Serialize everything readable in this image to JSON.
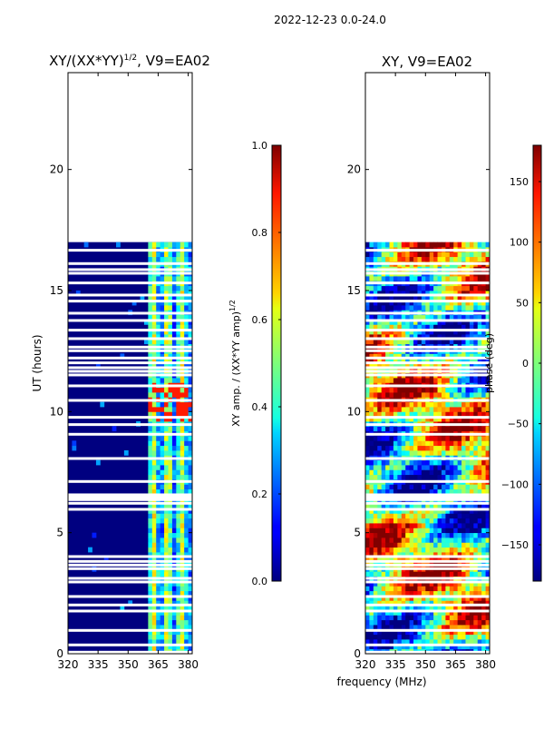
{
  "figure": {
    "suptitle": "2022-12-23 0.0-24.0",
    "xlabel": "frequency (MHz)"
  },
  "colors": {
    "jet_dark_blue": "#00007f",
    "jet_dark_red": "#7f0000",
    "frame": "#000000",
    "background": "#ffffff"
  },
  "chart_data": [
    {
      "type": "heatmap",
      "name": "amplitude-panel",
      "title_main": "XY/(XX*YY)",
      "title_exp": "1/2",
      "title_rest": ", V9=EA02",
      "ylabel": "UT (hours)",
      "xlabel": "",
      "xlim": [
        320,
        382
      ],
      "ylim": [
        0,
        24
      ],
      "x_ticks": [
        320,
        335,
        350,
        365,
        380
      ],
      "y_ticks": [
        0,
        5,
        10,
        15,
        20
      ],
      "data_ut_range": [
        0,
        17.0
      ],
      "colorbar": {
        "label_main": "XY amp. / (XX*YY amp)",
        "label_exp": "1/2",
        "range": [
          0.0,
          1.0
        ],
        "ticks": [
          "0.0",
          "0.2",
          "0.4",
          "0.6",
          "0.8",
          "1.0"
        ],
        "tick_values": [
          0.0,
          0.2,
          0.4,
          0.6,
          0.8,
          1.0
        ]
      },
      "description_values": {
        "background_level": 0.0,
        "rfi_band_mhz": [
          360,
          382
        ],
        "rfi_band_level_range": [
          0.1,
          0.7
        ],
        "strong_rfi_ut": [
          9.5,
          11.0
        ],
        "strong_rfi_level": 0.85
      },
      "flagged_ut": [
        0.05,
        0.35,
        0.95,
        1.75,
        2.0,
        2.35,
        2.95,
        3.1,
        3.5,
        3.65,
        3.8,
        4.0,
        5.95,
        6.2,
        6.35,
        6.45,
        6.55,
        7.1,
        8.05,
        9.05,
        9.45,
        9.75,
        10.45,
        11.05,
        11.5,
        11.65,
        11.8,
        12.0,
        12.2,
        12.5,
        12.65,
        13.0,
        13.35,
        13.75,
        14.05,
        14.55,
        14.8,
        15.3,
        15.7,
        15.85,
        16.1,
        16.65
      ]
    },
    {
      "type": "heatmap",
      "name": "phase-panel",
      "title_main": "XY, V9=EA02",
      "ylabel": "",
      "xlabel": "",
      "xlim": [
        320,
        382
      ],
      "ylim": [
        0,
        24
      ],
      "x_ticks": [
        320,
        335,
        350,
        365,
        380
      ],
      "y_ticks": [
        0,
        5,
        10,
        15,
        20
      ],
      "data_ut_range": [
        0,
        17.0
      ],
      "colorbar": {
        "label": "phase (deg)",
        "range": [
          -180,
          180
        ],
        "ticks": [
          "−150",
          "−100",
          "−50",
          "0",
          "50",
          "100",
          "150"
        ],
        "tick_values": [
          -150,
          -100,
          -50,
          0,
          50,
          100,
          150
        ]
      },
      "flagged_ut": [
        0.05,
        0.35,
        0.95,
        1.75,
        2.0,
        2.35,
        2.95,
        3.1,
        3.5,
        3.65,
        3.8,
        4.0,
        5.95,
        6.2,
        6.35,
        6.45,
        6.55,
        7.1,
        8.05,
        9.05,
        9.45,
        9.75,
        10.45,
        11.05,
        11.5,
        11.65,
        11.8,
        12.0,
        12.2,
        12.5,
        12.65,
        13.0,
        13.35,
        13.75,
        14.05,
        14.55,
        14.8,
        15.3,
        15.7,
        15.85,
        16.1,
        16.65
      ]
    }
  ]
}
